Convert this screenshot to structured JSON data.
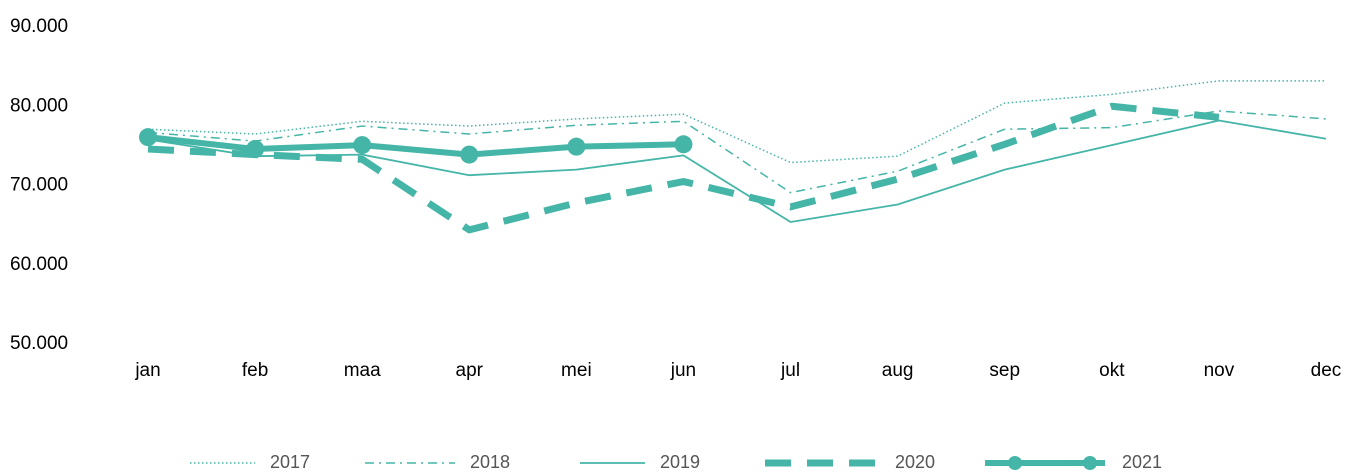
{
  "chart_data": {
    "type": "line",
    "categories": [
      "jan",
      "feb",
      "maa",
      "apr",
      "mei",
      "jun",
      "jul",
      "aug",
      "sep",
      "okt",
      "nov",
      "dec"
    ],
    "ylim": [
      50000,
      90000
    ],
    "yticks": [
      {
        "value": 50000,
        "label": "50.000"
      },
      {
        "value": 60000,
        "label": "60.000"
      },
      {
        "value": 70000,
        "label": "70.000"
      },
      {
        "value": 80000,
        "label": "80.000"
      },
      {
        "value": 90000,
        "label": "90.000"
      }
    ],
    "grid": false,
    "legend": "bottom",
    "series": [
      {
        "name": "2017",
        "color": "#45b5a7",
        "style": "dotted",
        "values": [
          77100,
          76500,
          78100,
          77500,
          78400,
          79000,
          72900,
          73700,
          80400,
          81500,
          83200,
          83200
        ]
      },
      {
        "name": "2018",
        "color": "#45b5a7",
        "style": "dashdot",
        "values": [
          76700,
          75600,
          77500,
          76500,
          77600,
          78100,
          69100,
          71800,
          77100,
          77300,
          79400,
          78400
        ]
      },
      {
        "name": "2019",
        "color": "#45b5a7",
        "style": "solid",
        "values": [
          75800,
          73700,
          73900,
          71300,
          72000,
          73800,
          65400,
          67600,
          72000,
          75100,
          78200,
          75900
        ]
      },
      {
        "name": "2020",
        "color": "#45b5a7",
        "style": "thickdash",
        "values": [
          74600,
          73900,
          73300,
          64400,
          67800,
          70500,
          67300,
          70800,
          75200,
          80000,
          78600,
          null
        ]
      },
      {
        "name": "2021",
        "color": "#45b5a7",
        "style": "thickmarker",
        "values": [
          76100,
          74600,
          75100,
          73900,
          74900,
          75200,
          null,
          null,
          null,
          null,
          null,
          null
        ]
      }
    ]
  }
}
